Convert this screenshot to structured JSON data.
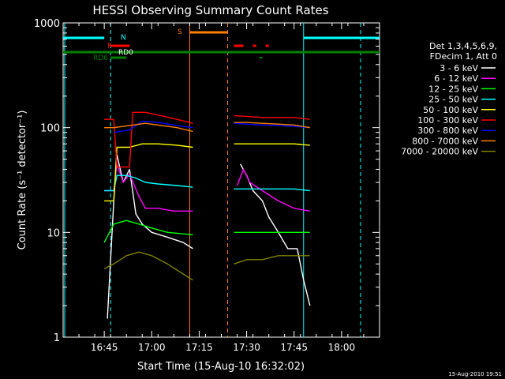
{
  "chart_data": {
    "type": "line",
    "title": "HESSI Observing Summary Count Rates",
    "xlabel": "Start Time (15-Aug-10 16:32:02)",
    "ylabel": "Count Rate (s⁻¹ detector⁻¹)",
    "yscale": "log",
    "ylim": [
      1,
      1000
    ],
    "xlim": [
      "16:32",
      "18:12"
    ],
    "x_ticks": [
      "16:45",
      "17:00",
      "17:15",
      "17:30",
      "17:45",
      "18:00"
    ],
    "y_ticks": [
      "1",
      "10",
      "100",
      "1000"
    ],
    "grid": false,
    "legend_position": "right",
    "legend_header": [
      "Det 1,3,4,5,6,9,",
      "FDecim 1, Att 0"
    ],
    "footer_timestamp": "15-Aug-2010 19:51",
    "flag_labels": {
      "N": "N",
      "F": "F",
      "RD0": "RD0",
      "RD6": "RD6",
      "S": "S"
    },
    "series": [
      {
        "name": "3 - 6 keV",
        "color": "#ffffff",
        "points": [
          [
            "16:46",
            1.5
          ],
          [
            "16:48",
            20
          ],
          [
            "16:49",
            55
          ],
          [
            "16:51",
            30
          ],
          [
            "16:53",
            40
          ],
          [
            "16:55",
            15
          ],
          [
            "16:57",
            12
          ],
          [
            "17:00",
            10
          ],
          [
            "17:05",
            9
          ],
          [
            "17:10",
            8
          ],
          [
            "17:13",
            7
          ],
          null,
          [
            "17:28",
            45
          ],
          [
            "17:30",
            35
          ],
          [
            "17:32",
            25
          ],
          [
            "17:35",
            20
          ],
          [
            "17:37",
            14
          ],
          [
            "17:40",
            10
          ],
          [
            "17:43",
            7
          ],
          [
            "17:46",
            7
          ],
          [
            "17:48",
            3.5
          ],
          [
            "17:50",
            2
          ]
        ]
      },
      {
        "name": "6 - 12 keV",
        "color": "#ff00ff",
        "points": [
          [
            "16:45",
            25
          ],
          [
            "16:48",
            25
          ],
          [
            "16:49",
            45
          ],
          [
            "16:51",
            30
          ],
          [
            "16:53",
            36
          ],
          [
            "16:56",
            22
          ],
          [
            "16:58",
            17
          ],
          [
            "17:02",
            17
          ],
          [
            "17:07",
            16
          ],
          [
            "17:13",
            16
          ],
          null,
          [
            "17:27",
            28
          ],
          [
            "17:29",
            40
          ],
          [
            "17:31",
            30
          ],
          [
            "17:35",
            25
          ],
          [
            "17:40",
            20
          ],
          [
            "17:45",
            17
          ],
          [
            "17:50",
            16
          ]
        ]
      },
      {
        "name": "12 - 25 keV",
        "color": "#00ff00",
        "points": [
          [
            "16:45",
            8
          ],
          [
            "16:48",
            12
          ],
          [
            "16:52",
            13
          ],
          [
            "16:56",
            12
          ],
          [
            "17:00",
            11
          ],
          [
            "17:05",
            10
          ],
          [
            "17:13",
            9.5
          ],
          null,
          [
            "17:26",
            10
          ],
          [
            "17:30",
            10
          ],
          [
            "17:35",
            10
          ],
          [
            "17:40",
            10
          ],
          [
            "17:45",
            10
          ],
          [
            "17:50",
            10
          ]
        ]
      },
      {
        "name": "25 - 50 keV",
        "color": "#00ffff",
        "points": [
          [
            "16:45",
            25
          ],
          [
            "16:48",
            25
          ],
          [
            "16:49",
            35
          ],
          [
            "16:52",
            35
          ],
          [
            "16:55",
            33
          ],
          [
            "16:58",
            30
          ],
          [
            "17:02",
            29
          ],
          [
            "17:08",
            28
          ],
          [
            "17:13",
            27
          ],
          null,
          [
            "17:26",
            26
          ],
          [
            "17:30",
            26
          ],
          [
            "17:35",
            26
          ],
          [
            "17:40",
            26
          ],
          [
            "17:45",
            26
          ],
          [
            "17:50",
            25
          ]
        ]
      },
      {
        "name": "50 - 100 keV",
        "color": "#ffff00",
        "points": [
          [
            "16:45",
            20
          ],
          [
            "16:48",
            20
          ],
          [
            "16:49",
            65
          ],
          [
            "16:53",
            65
          ],
          [
            "16:57",
            70
          ],
          [
            "17:02",
            70
          ],
          [
            "17:08",
            68
          ],
          [
            "17:13",
            65
          ],
          null,
          [
            "17:26",
            70
          ],
          [
            "17:30",
            70
          ],
          [
            "17:35",
            70
          ],
          [
            "17:40",
            70
          ],
          [
            "17:45",
            70
          ],
          [
            "17:50",
            68
          ]
        ]
      },
      {
        "name": "100 - 300 keV",
        "color": "#ff0000",
        "points": [
          [
            "16:45",
            120
          ],
          [
            "16:48",
            120
          ],
          [
            "16:49",
            42
          ],
          [
            "16:53",
            42
          ],
          [
            "16:54",
            140
          ],
          [
            "16:58",
            140
          ],
          [
            "17:03",
            130
          ],
          [
            "17:08",
            120
          ],
          [
            "17:13",
            110
          ],
          null,
          [
            "17:26",
            130
          ],
          [
            "17:30",
            128
          ],
          [
            "17:35",
            125
          ],
          [
            "17:40",
            125
          ],
          [
            "17:45",
            125
          ],
          [
            "17:50",
            120
          ]
        ]
      },
      {
        "name": "300 - 800 keV",
        "color": "#0000ff",
        "points": [
          [
            "16:48",
            90
          ],
          [
            "16:53",
            95
          ],
          [
            "16:57",
            115
          ],
          [
            "17:02",
            112
          ],
          [
            "17:08",
            105
          ],
          [
            "17:13",
            100
          ],
          null,
          [
            "17:26",
            110
          ],
          [
            "17:30",
            108
          ],
          [
            "17:35",
            106
          ],
          [
            "17:40",
            105
          ],
          [
            "17:45",
            103
          ],
          [
            "17:50",
            100
          ]
        ]
      },
      {
        "name": "800 - 7000 keV",
        "color": "#ff8000",
        "points": [
          [
            "16:45",
            100
          ],
          [
            "16:48",
            100
          ],
          [
            "16:53",
            105
          ],
          [
            "16:58",
            110
          ],
          [
            "17:03",
            105
          ],
          [
            "17:08",
            100
          ],
          [
            "17:13",
            92
          ],
          null,
          [
            "17:26",
            112
          ],
          [
            "17:30",
            112
          ],
          [
            "17:35",
            110
          ],
          [
            "17:40",
            108
          ],
          [
            "17:45",
            106
          ],
          [
            "17:50",
            100
          ]
        ]
      },
      {
        "name": "7000 - 20000 keV",
        "color": "#808000",
        "points": [
          [
            "16:45",
            4.5
          ],
          [
            "16:48",
            5
          ],
          [
            "16:52",
            6
          ],
          [
            "16:56",
            6.5
          ],
          [
            "17:00",
            6
          ],
          [
            "17:05",
            5
          ],
          [
            "17:10",
            4
          ],
          [
            "17:13",
            3.5
          ],
          null,
          [
            "17:26",
            5
          ],
          [
            "17:30",
            5.5
          ],
          [
            "17:35",
            5.5
          ],
          [
            "17:40",
            6
          ],
          [
            "17:45",
            6
          ],
          [
            "17:50",
            6
          ]
        ]
      }
    ]
  }
}
